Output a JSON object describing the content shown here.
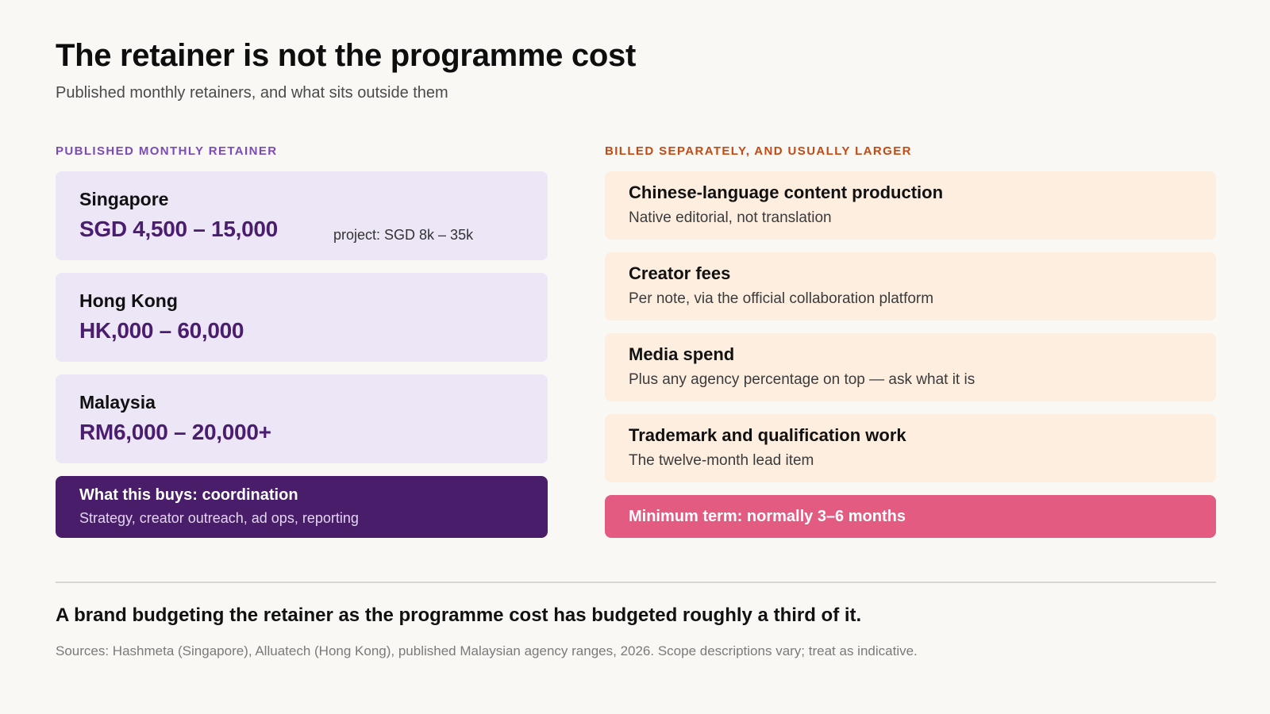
{
  "header": {
    "title": "The retainer is not the programme cost",
    "subtitle": "Published monthly retainers, and what sits outside them"
  },
  "left": {
    "section_label": "PUBLISHED MONTHLY RETAINER",
    "retainers": [
      {
        "country": "Singapore",
        "range": "SGD 4,500 – 15,000",
        "note": "project: SGD 8k – 35k"
      },
      {
        "country": "Hong Kong",
        "range": "HK,000 – 60,000"
      },
      {
        "country": "Malaysia",
        "range": "RM6,000 – 20,000+"
      }
    ],
    "buys": {
      "title": "What this buys: coordination",
      "desc": "Strategy, creator outreach, ad ops, reporting"
    }
  },
  "right": {
    "section_label": "BILLED SEPARATELY, AND USUALLY LARGER",
    "costs": [
      {
        "title": "Chinese-language content production",
        "desc": "Native editorial, not translation"
      },
      {
        "title": "Creator fees",
        "desc": "Per note, via the official collaboration platform"
      },
      {
        "title": "Media spend",
        "desc": "Plus any agency percentage on top — ask what it is"
      },
      {
        "title": "Trademark and qualification work",
        "desc": "The twelve-month lead item"
      }
    ],
    "minimum_term": "Minimum term: normally 3–6 months"
  },
  "footer": {
    "conclusion": "A brand budgeting the retainer as the programme cost has budgeted roughly a third of it.",
    "sources": "Sources: Hashmeta (Singapore), Alluatech (Hong Kong), published Malaysian agency ranges, 2026. Scope descriptions vary; treat as indicative."
  },
  "colors": {
    "retainer_card_bg": "#ece6f6",
    "retainer_range": "#4a1d6e",
    "buys_card_bg": "#4a1d6a",
    "cost_card_bg": "#fdeee0",
    "minimum_term_bg": "#e35b80",
    "left_label": "#7b4bb8",
    "right_label": "#c24a14"
  }
}
